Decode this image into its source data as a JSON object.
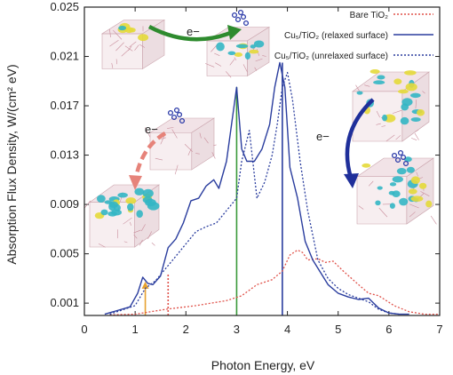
{
  "chart_data": {
    "type": "line",
    "xlabel": "Photon Energy, eV",
    "ylabel": "Absorption Flux Density, W/(cm² eV)",
    "xlim": [
      0,
      7
    ],
    "ylim": [
      0,
      0.025
    ],
    "x_ticks": [
      "0",
      "1",
      "2",
      "3",
      "4",
      "5",
      "6",
      "7"
    ],
    "y_ticks": [
      "0.001",
      "0.005",
      "0.009",
      "0.013",
      "0.017",
      "0.021",
      "0.025"
    ],
    "y_tick_values": [
      0.001,
      0.005,
      0.009,
      0.013,
      0.017,
      0.021,
      0.025
    ],
    "legend_position": "top-right",
    "grid": false,
    "series": [
      {
        "name": "Bare TiO₂",
        "color": "#e0524a",
        "style": "dotted",
        "x": [
          0.5,
          1.0,
          1.6,
          2.2,
          2.8,
          3.1,
          3.4,
          3.7,
          3.9,
          4.05,
          4.2,
          4.3,
          4.4,
          4.6,
          4.75,
          4.9,
          5.1,
          5.4,
          5.6,
          5.8,
          6.1,
          6.4,
          6.7,
          7.0
        ],
        "y": [
          5e-05,
          0.0001,
          0.0005,
          0.0008,
          0.0012,
          0.0016,
          0.0025,
          0.0029,
          0.0036,
          0.0049,
          0.0053,
          0.0051,
          0.0045,
          0.0046,
          0.0043,
          0.0044,
          0.0036,
          0.0025,
          0.0018,
          0.0016,
          0.0008,
          0.0003,
          0.0001,
          0.0001
        ]
      },
      {
        "name": "Cu₅/TiO₂ (relaxed surface)",
        "color": "#2a3d9e",
        "style": "solid",
        "x": [
          0.4,
          0.9,
          1.05,
          1.15,
          1.25,
          1.35,
          1.5,
          1.65,
          1.8,
          1.95,
          2.1,
          2.25,
          2.4,
          2.55,
          2.65,
          2.8,
          2.9,
          3.0,
          3.1,
          3.2,
          3.35,
          3.5,
          3.65,
          3.75,
          3.85,
          3.95,
          4.05,
          4.2,
          4.35,
          4.5,
          4.65,
          4.8,
          5.0,
          5.2,
          5.4,
          5.6,
          5.8,
          6.0,
          6.2,
          6.4
        ],
        "y": [
          0.0001,
          0.0007,
          0.0018,
          0.0031,
          0.0026,
          0.0025,
          0.0032,
          0.0055,
          0.0062,
          0.0075,
          0.0093,
          0.0095,
          0.0105,
          0.011,
          0.0103,
          0.0125,
          0.0155,
          0.0185,
          0.0135,
          0.0125,
          0.0125,
          0.0135,
          0.0155,
          0.0185,
          0.0205,
          0.0185,
          0.012,
          0.0095,
          0.006,
          0.0045,
          0.0035,
          0.0025,
          0.0018,
          0.0015,
          0.0013,
          0.0014,
          0.0006,
          0.0002,
          0.0001,
          0.0001
        ]
      },
      {
        "name": "Cu₅/TiO₂ (unrelaxed surface)",
        "color": "#2a3d9e",
        "style": "dotted",
        "x": [
          0.5,
          1.0,
          1.2,
          1.4,
          1.6,
          1.8,
          2.0,
          2.2,
          2.4,
          2.6,
          2.8,
          3.0,
          3.1,
          3.25,
          3.4,
          3.55,
          3.7,
          3.8,
          3.9,
          4.0,
          4.1,
          4.25,
          4.4,
          4.6,
          4.8,
          5.0,
          5.2,
          5.4,
          5.6,
          5.8,
          6.0,
          6.2
        ],
        "y": [
          0.0001,
          0.0008,
          0.0022,
          0.0028,
          0.0038,
          0.0048,
          0.0058,
          0.0068,
          0.0072,
          0.0075,
          0.0085,
          0.0095,
          0.0125,
          0.015,
          0.0095,
          0.0108,
          0.013,
          0.0155,
          0.0185,
          0.0197,
          0.0175,
          0.0125,
          0.0085,
          0.0045,
          0.003,
          0.0022,
          0.0017,
          0.0014,
          0.0011,
          0.0005,
          0.0002,
          0.0001
        ]
      }
    ],
    "markers": [
      {
        "x": 1.2,
        "y": 0.0026,
        "color": "#e6a12e",
        "style": "solid"
      },
      {
        "x": 1.65,
        "y": 0.0034,
        "color": "#e0524a",
        "style": "dotted"
      },
      {
        "x": 3.0,
        "y": 0.0185,
        "color": "#3a9a3a",
        "style": "solid"
      },
      {
        "x": 3.9,
        "y": 0.0205,
        "color": "#2a3d9e",
        "style": "solid"
      }
    ],
    "annotations": [
      {
        "text": "e−",
        "arrow_color": "#2e8b2e"
      },
      {
        "text": "e−",
        "arrow_color": "#e6837a"
      },
      {
        "text": "e−",
        "arrow_color": "#1f2f9a"
      }
    ]
  }
}
